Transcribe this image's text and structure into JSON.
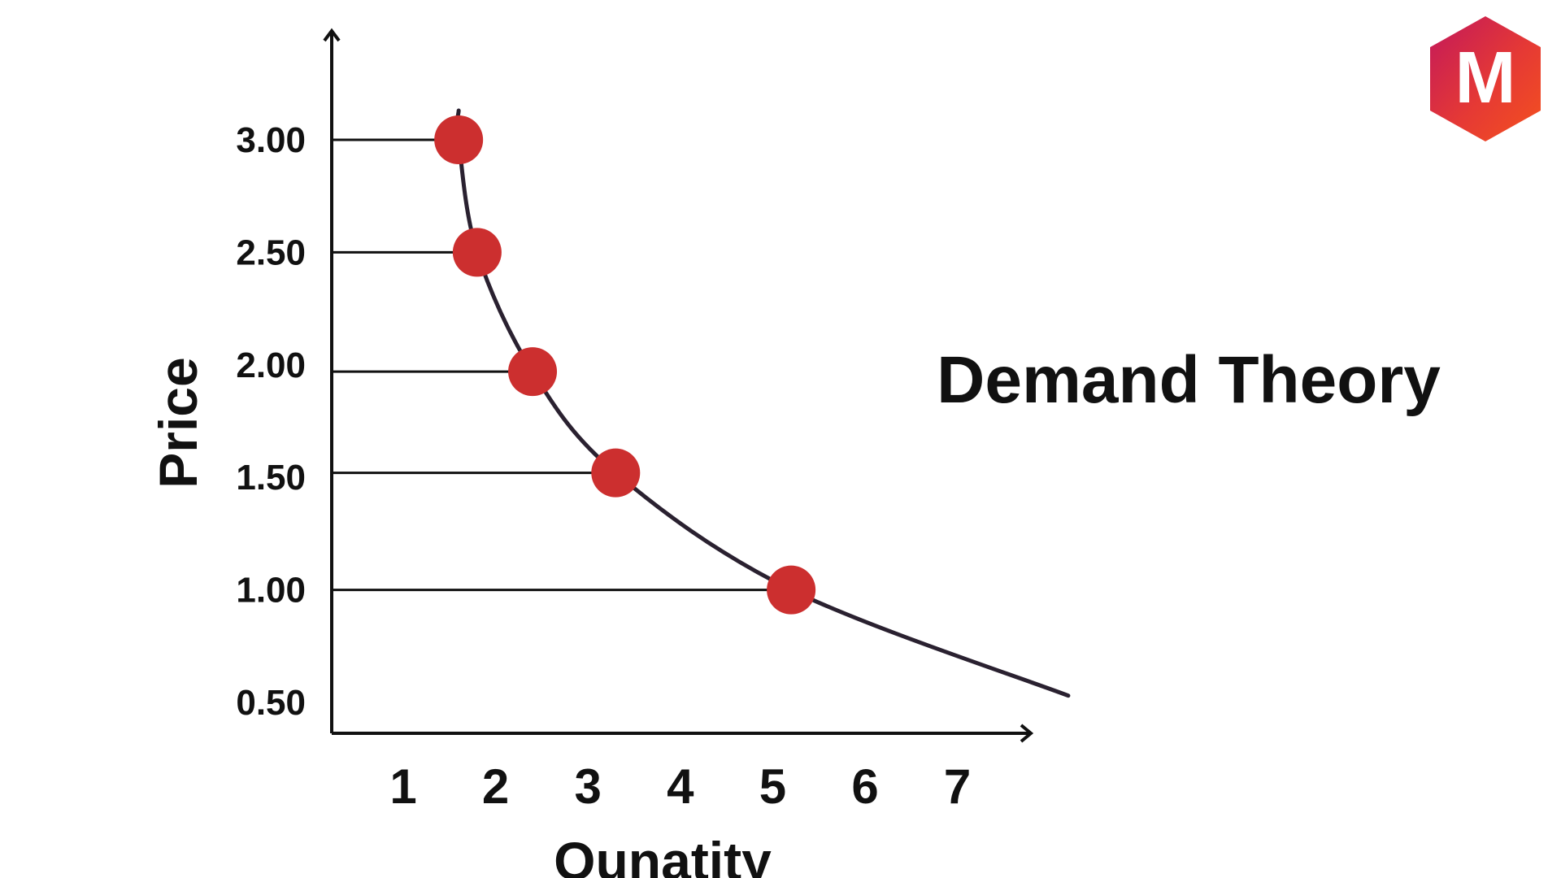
{
  "chart_data": {
    "type": "line",
    "title": "Demand Theory",
    "xlabel": "Qunatity",
    "ylabel": "Price",
    "x_ticks": [
      "1",
      "2",
      "3",
      "4",
      "5",
      "6",
      "7"
    ],
    "y_ticks": [
      "0.50",
      "1.00",
      "1.50",
      "2.00",
      "2.50",
      "3.00"
    ],
    "xlim": [
      0.2,
      7.8
    ],
    "ylim": [
      0.3,
      3.6
    ],
    "grid": false,
    "points": [
      {
        "x": 1.6,
        "y": 3.0
      },
      {
        "x": 1.8,
        "y": 2.5
      },
      {
        "x": 2.4,
        "y": 1.97
      },
      {
        "x": 3.3,
        "y": 1.52
      },
      {
        "x": 5.2,
        "y": 1.0
      }
    ],
    "curve": [
      {
        "x": 1.6,
        "y": 3.13
      },
      {
        "x": 1.6,
        "y": 3.0
      },
      {
        "x": 1.8,
        "y": 2.5
      },
      {
        "x": 2.4,
        "y": 1.97
      },
      {
        "x": 3.3,
        "y": 1.52
      },
      {
        "x": 5.2,
        "y": 1.0
      },
      {
        "x": 8.2,
        "y": 0.53
      }
    ],
    "colors": {
      "points": "#cc2f2f",
      "curve": "#2a2130",
      "axes": "#111111",
      "guides": "#111111"
    }
  },
  "logo": {
    "letter": "M",
    "colors": [
      "#c2185b",
      "#e53935",
      "#f4511e"
    ]
  }
}
